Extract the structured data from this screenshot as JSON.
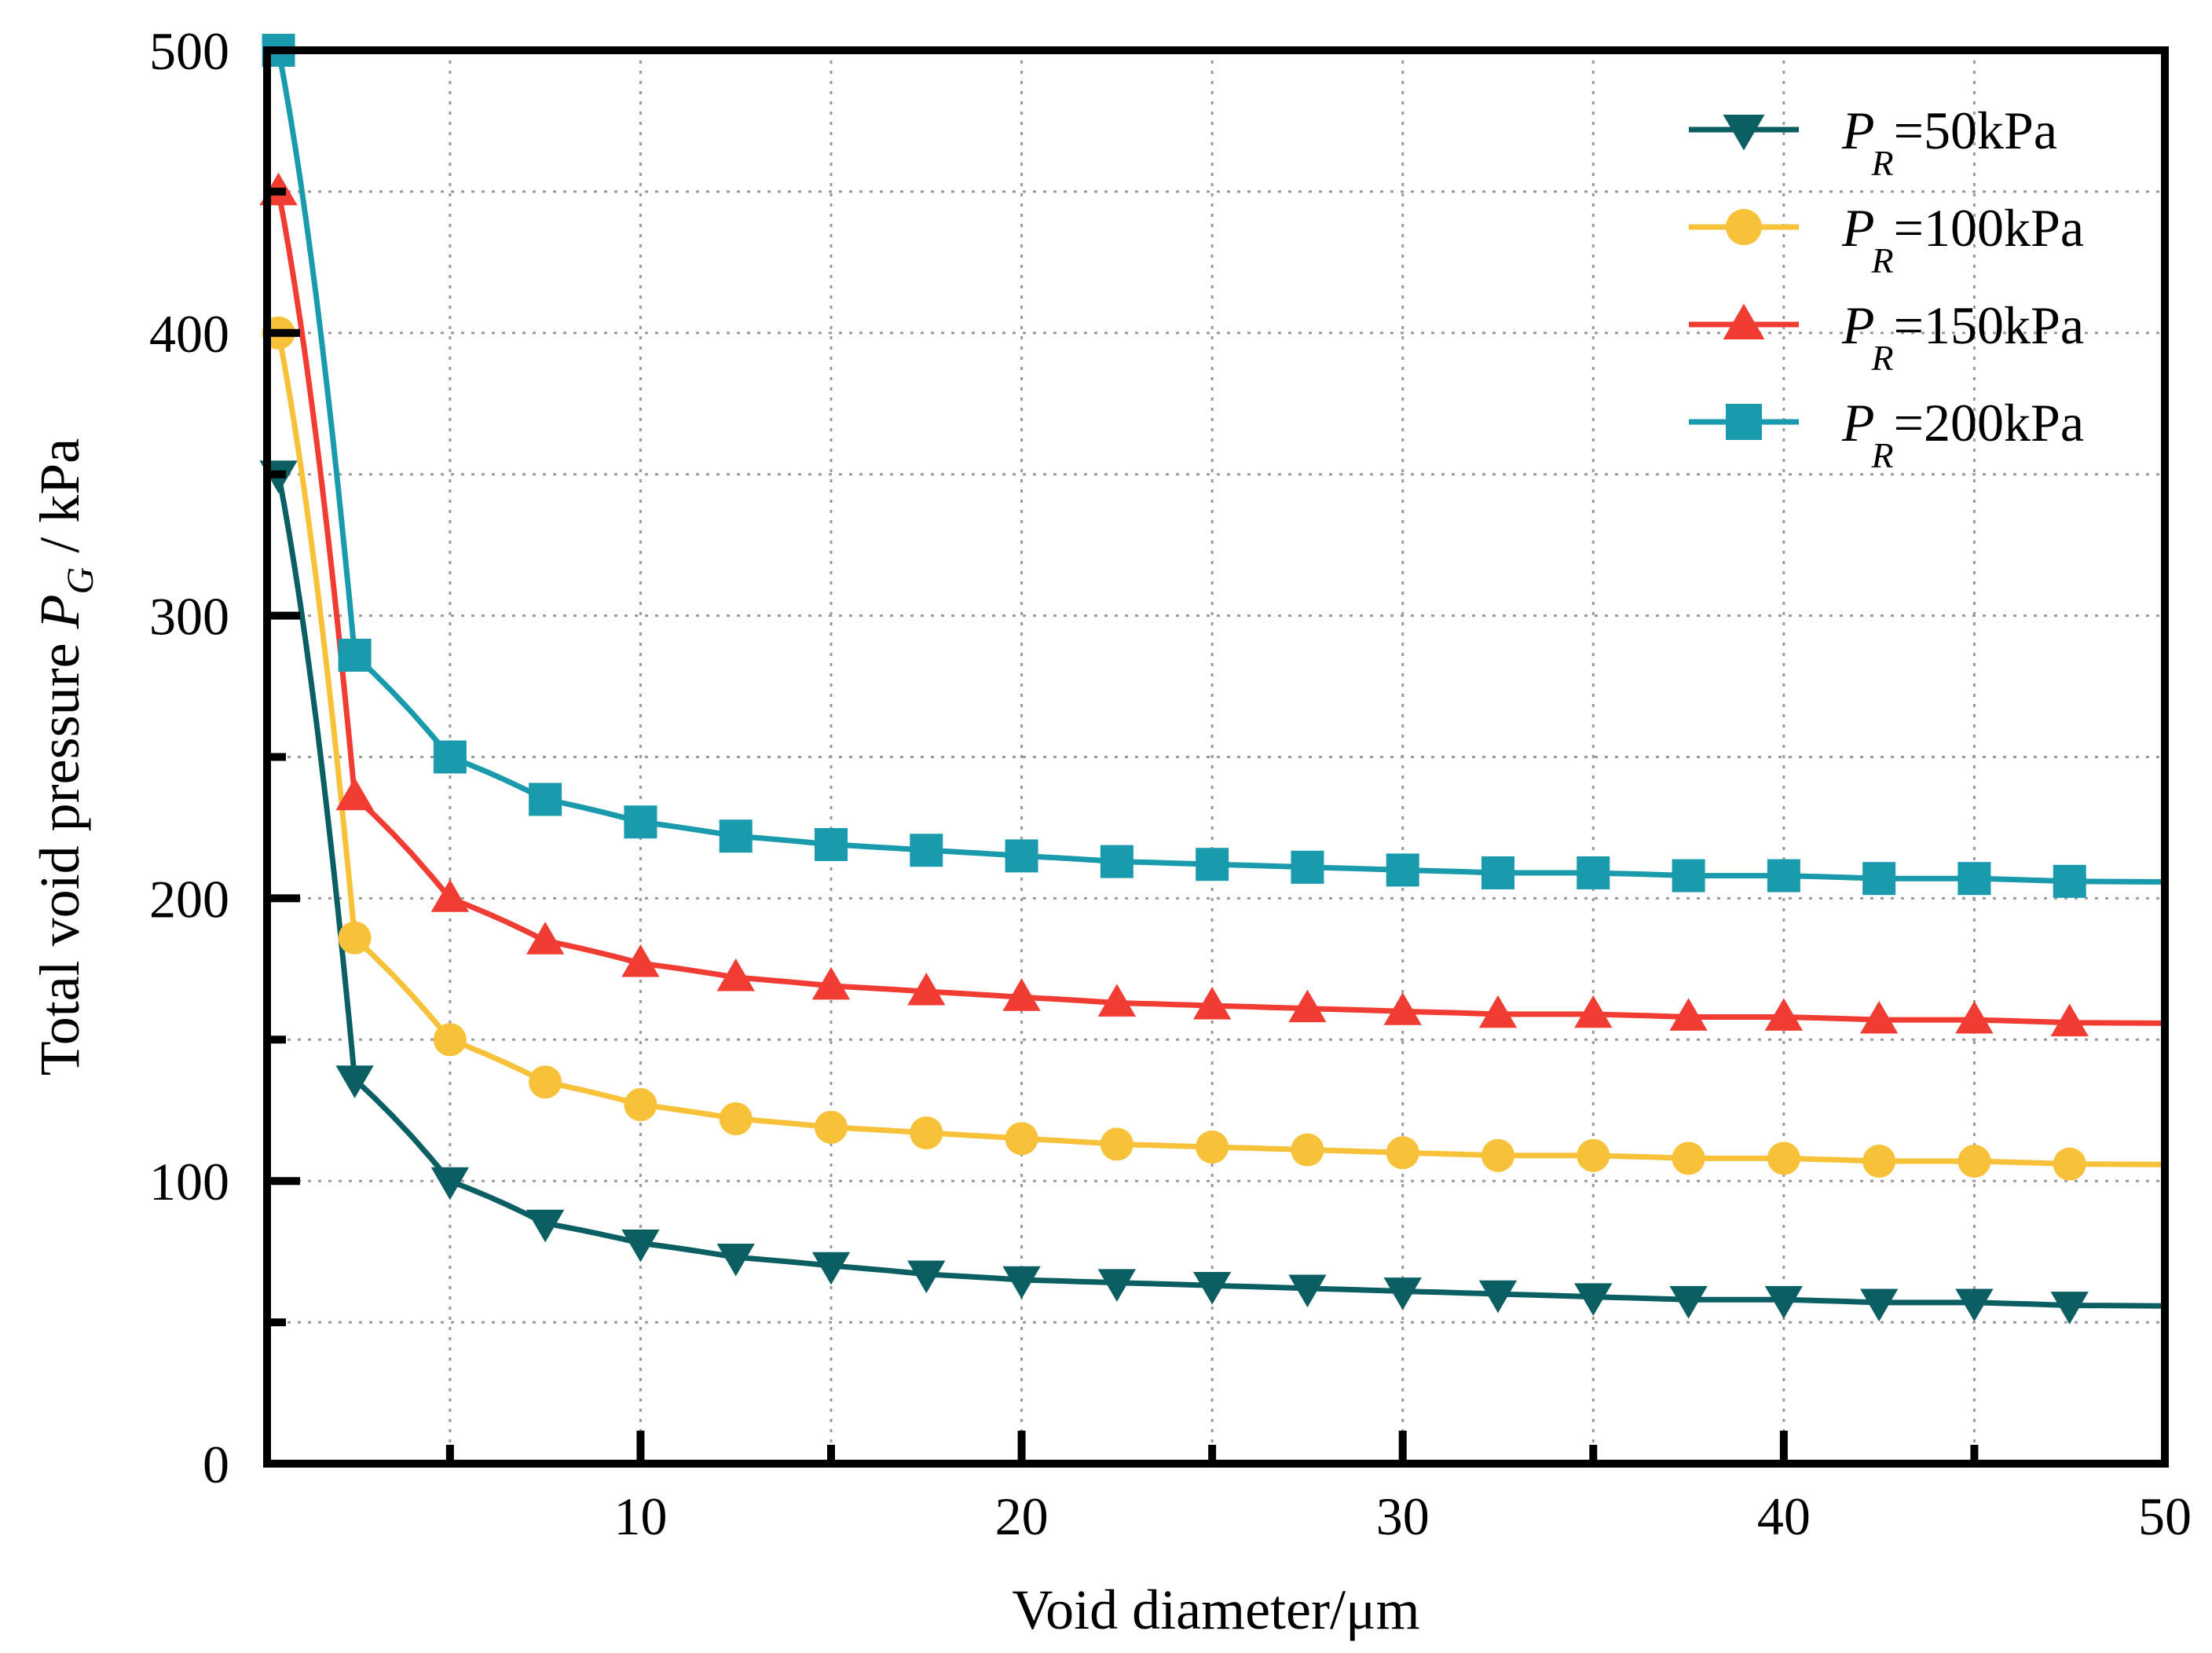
{
  "chart_data": {
    "type": "line",
    "xlabel": "Void diameter/μm",
    "ylabel": {
      "prefix": "Total void pressure ",
      "symbol": "P",
      "subscript": "G",
      "suffix": " / kPa"
    },
    "xlim": [
      0.2,
      50
    ],
    "ylim": [
      0,
      500
    ],
    "x_ticks": [
      10,
      20,
      30,
      40,
      50
    ],
    "y_ticks": [
      0,
      100,
      200,
      300,
      400,
      500
    ],
    "grid": true,
    "legend_position": "top-right",
    "series": [
      {
        "label": {
          "symbol": "P",
          "subscript": "R",
          "text": "=50kPa"
        },
        "base": 50,
        "color": "#0b5f63",
        "marker": "triangle-down",
        "marker_x": [
          0.5,
          2.5,
          5,
          7.5,
          10,
          12.5,
          15,
          17.5,
          20,
          22.5,
          25,
          27.5,
          30,
          32.5,
          35,
          37.5,
          40,
          42.5,
          45,
          47.5
        ],
        "values": [
          350,
          136,
          100,
          85,
          78,
          73,
          70,
          67,
          65,
          64,
          63,
          62,
          61,
          60,
          59,
          58,
          58,
          57,
          57,
          56
        ]
      },
      {
        "label": {
          "symbol": "P",
          "subscript": "R",
          "text": "=100kPa"
        },
        "base": 100,
        "color": "#f7c23a",
        "marker": "circle",
        "marker_x": [
          0.5,
          2.5,
          5,
          7.5,
          10,
          12.5,
          15,
          17.5,
          20,
          22.5,
          25,
          27.5,
          30,
          32.5,
          35,
          37.5,
          40,
          42.5,
          45,
          47.5
        ],
        "values": [
          400,
          186,
          150,
          135,
          127,
          122,
          119,
          117,
          115,
          113,
          112,
          111,
          110,
          109,
          109,
          108,
          108,
          107,
          107,
          106
        ]
      },
      {
        "label": {
          "symbol": "P",
          "subscript": "R",
          "text": "=150kPa"
        },
        "base": 150,
        "color": "#f03c32",
        "marker": "triangle-up",
        "marker_x": [
          0.5,
          2.5,
          5,
          7.5,
          10,
          12.5,
          15,
          17.5,
          20,
          22.5,
          25,
          27.5,
          30,
          32.5,
          35,
          37.5,
          40,
          42.5,
          45,
          47.5
        ],
        "values": [
          450,
          236,
          200,
          185,
          177,
          172,
          169,
          167,
          165,
          163,
          162,
          161,
          160,
          159,
          159,
          158,
          158,
          157,
          157,
          156
        ]
      },
      {
        "label": {
          "symbol": "P",
          "subscript": "R",
          "text": "=200kPa"
        },
        "base": 200,
        "color": "#1a9aad",
        "marker": "square",
        "marker_x": [
          0.5,
          2.5,
          5,
          7.5,
          10,
          12.5,
          15,
          17.5,
          20,
          22.5,
          25,
          27.5,
          30,
          32.5,
          35,
          37.5,
          40,
          42.5,
          45,
          47.5
        ],
        "values": [
          500,
          286,
          250,
          235,
          227,
          222,
          219,
          217,
          215,
          213,
          212,
          211,
          210,
          209,
          209,
          208,
          208,
          207,
          207,
          206
        ]
      }
    ]
  }
}
